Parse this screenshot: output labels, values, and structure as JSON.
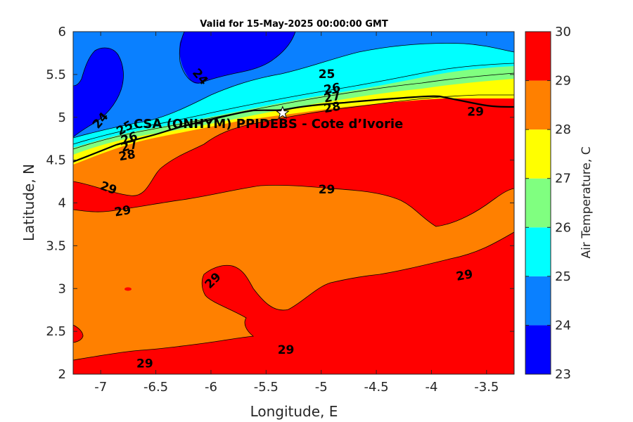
{
  "title": "Valid for 15-May-2025 00:00:00 GMT",
  "site_label": "CSA (ONHYM) PPIDEBS  - Cote d’Ivorie",
  "chart_data": {
    "type": "heatmap",
    "subtype": "filled-contour-map",
    "xlabel": "Longitude, E",
    "ylabel": "Latitude, N",
    "xlim": [
      -7.25,
      -3.25
    ],
    "ylim": [
      2,
      6
    ],
    "xticks": [
      "-7",
      "-6.5",
      "-6",
      "-5.5",
      "-5",
      "-4.5",
      "-4",
      "-3.5"
    ],
    "yticks": [
      "2",
      "2.5",
      "3",
      "3.5",
      "4",
      "4.5",
      "5",
      "5.5",
      "6"
    ],
    "colorbar": {
      "label": "Air Temperature, C",
      "ticks": [
        "23",
        "24",
        "25",
        "26",
        "27",
        "28",
        "29",
        "30"
      ],
      "levels": [
        {
          "min": 23,
          "max": 24,
          "color": "#0000ff"
        },
        {
          "min": 24,
          "max": 25,
          "color": "#0a80ff"
        },
        {
          "min": 25,
          "max": 26,
          "color": "#00ffff"
        },
        {
          "min": 26,
          "max": 27,
          "color": "#80ff80"
        },
        {
          "min": 27,
          "max": 28,
          "color": "#ffff00"
        },
        {
          "min": 28,
          "max": 29,
          "color": "#ff8000"
        },
        {
          "min": 29,
          "max": 30,
          "color": "#ff0000"
        },
        {
          "min": 30,
          "max": 31,
          "color": "#800000"
        }
      ]
    },
    "contour_labels": [
      {
        "text": "24",
        "lon": -6.1,
        "lat": 5.47,
        "rotate": 50
      },
      {
        "text": "24",
        "lon": -7.0,
        "lat": 4.96,
        "rotate": -50
      },
      {
        "text": "25",
        "lon": -4.95,
        "lat": 5.5,
        "rotate": 0
      },
      {
        "text": "26",
        "lon": -4.9,
        "lat": 5.33,
        "rotate": -10
      },
      {
        "text": "27",
        "lon": -4.9,
        "lat": 5.23,
        "rotate": -10
      },
      {
        "text": "28",
        "lon": -4.9,
        "lat": 5.11,
        "rotate": -10
      },
      {
        "text": "29",
        "lon": -3.6,
        "lat": 5.06,
        "rotate": 0
      },
      {
        "text": "25",
        "lon": -6.78,
        "lat": 4.87,
        "rotate": -30
      },
      {
        "text": "26",
        "lon": -6.74,
        "lat": 4.75,
        "rotate": -20
      },
      {
        "text": "27",
        "lon": -6.74,
        "lat": 4.66,
        "rotate": -15
      },
      {
        "text": "28",
        "lon": -6.76,
        "lat": 4.55,
        "rotate": -10
      },
      {
        "text": "29",
        "lon": -6.93,
        "lat": 4.17,
        "rotate": 20
      },
      {
        "text": "29",
        "lon": -6.8,
        "lat": 3.9,
        "rotate": -10
      },
      {
        "text": "29",
        "lon": -4.95,
        "lat": 4.15,
        "rotate": 0
      },
      {
        "text": "29",
        "lon": -5.98,
        "lat": 3.09,
        "rotate": -45
      },
      {
        "text": "29",
        "lon": -3.7,
        "lat": 3.15,
        "rotate": -10
      },
      {
        "text": "29",
        "lon": -5.32,
        "lat": 2.28,
        "rotate": 0
      },
      {
        "text": "29",
        "lon": -6.6,
        "lat": 2.12,
        "rotate": 0
      }
    ],
    "station": {
      "lon": -5.35,
      "lat": 5.05,
      "marker": "star"
    }
  }
}
